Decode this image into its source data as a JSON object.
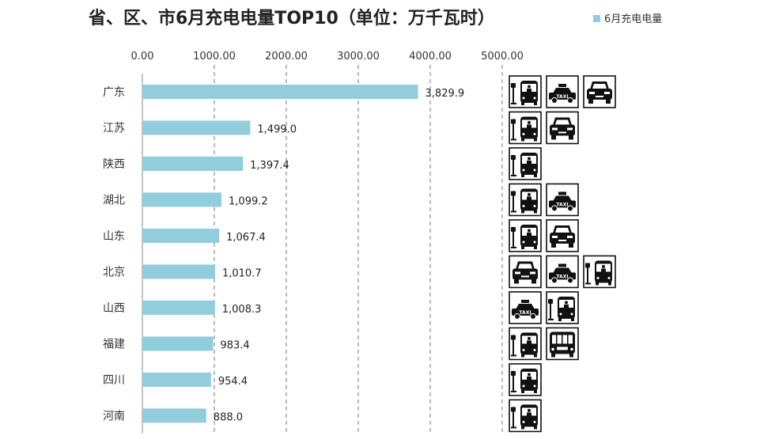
{
  "chart_data": {
    "type": "bar",
    "orientation": "horizontal",
    "title": "省、区、市6月充电电量TOP10（单位：万千瓦时）",
    "legend": {
      "label": "6月充电电量",
      "position": "top-right"
    },
    "categories": [
      "广东",
      "江苏",
      "陕西",
      "湖北",
      "山东",
      "北京",
      "山西",
      "福建",
      "四川",
      "河南"
    ],
    "series": [
      {
        "name": "6月充电电量",
        "values": [
          3829.9,
          1499.0,
          1397.4,
          1099.2,
          1067.4,
          1010.7,
          1008.3,
          983.4,
          954.4,
          888.0
        ]
      }
    ],
    "value_labels": [
      "3,829.9",
      "1,499.0",
      "1,397.4",
      "1,099.2",
      "1,067.4",
      "1,010.7",
      "1,008.3",
      "983.4",
      "954.4",
      "888.0"
    ],
    "x_ticks": [
      0,
      1000,
      2000,
      3000,
      4000,
      5000
    ],
    "x_tick_labels": [
      "0.00",
      "1000.00",
      "2000.00",
      "3000.00",
      "4000.00",
      "5000.00"
    ],
    "xlim": [
      0,
      5000
    ],
    "grid": "vertical dashed",
    "bar_color": "#92CDDC",
    "vehicle_icons": [
      [
        "bus-icon",
        "taxi-icon",
        "car-icon"
      ],
      [
        "bus-icon",
        "car-icon"
      ],
      [
        "bus-icon"
      ],
      [
        "bus-icon",
        "taxi-icon"
      ],
      [
        "bus-icon",
        "car-icon"
      ],
      [
        "car-icon",
        "taxi-icon",
        "bus-icon"
      ],
      [
        "taxi-icon",
        "bus-icon"
      ],
      [
        "bus-icon",
        "coach-icon"
      ],
      [
        "bus-icon"
      ],
      [
        "bus-icon"
      ]
    ]
  }
}
